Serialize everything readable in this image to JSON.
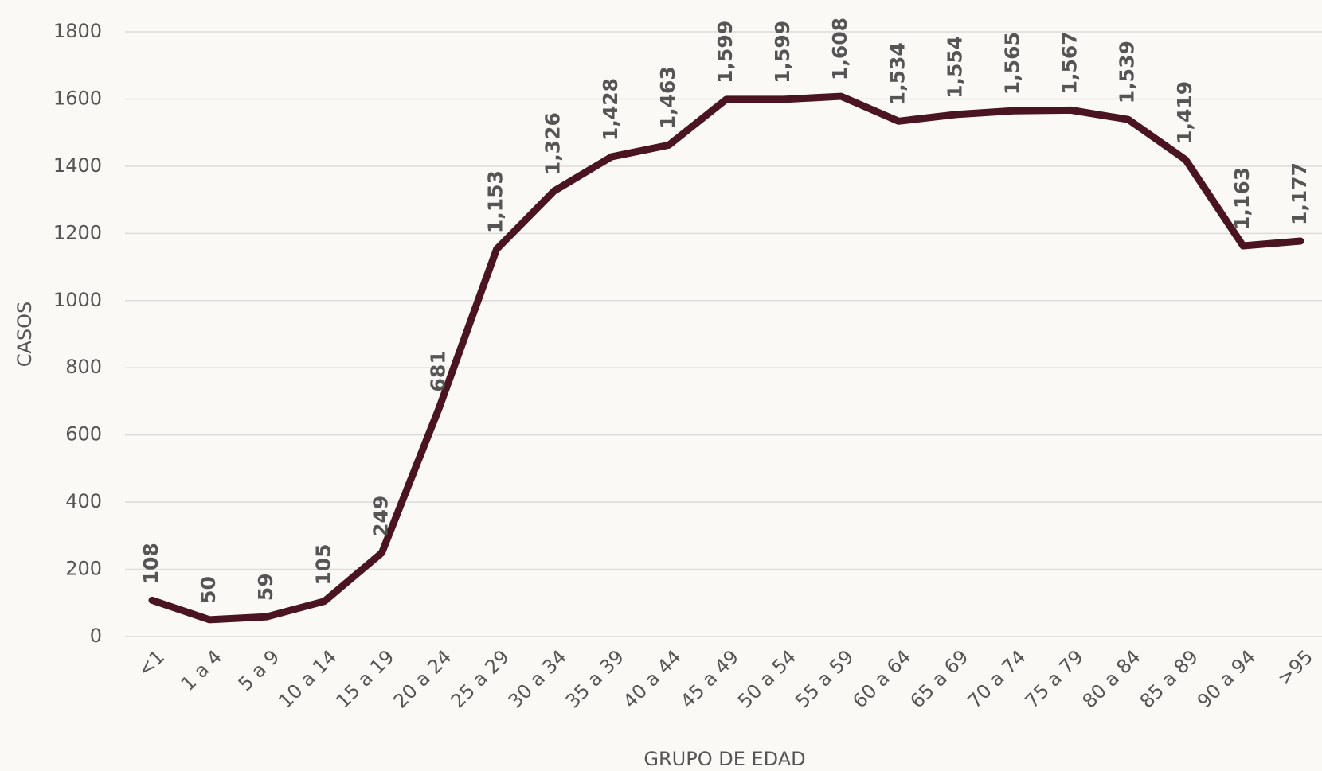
{
  "chart_data": {
    "type": "line",
    "y_label": "CASOS",
    "x_label": "GRUPO DE EDAD",
    "categories": [
      "<1",
      "1 a 4",
      "5 a 9",
      "10 a 14",
      "15 a 19",
      "20 a 24",
      "25 a 29",
      "30 a 34",
      "35 a 39",
      "40 a 44",
      "45 a 49",
      "50 a 54",
      "55 a 59",
      "60 a 64",
      "65 a 69",
      "70 a 74",
      "75 a 79",
      "80 a 84",
      "85 a 89",
      "90 a 94",
      ">95"
    ],
    "values": [
      108,
      50,
      59,
      105,
      249,
      681,
      1153,
      1326,
      1428,
      1463,
      1599,
      1599,
      1608,
      1534,
      1554,
      1565,
      1567,
      1539,
      1419,
      1163,
      1177
    ],
    "value_labels": [
      "108",
      "50",
      "59",
      "105",
      "249",
      "681",
      "1,153",
      "1,326",
      "1,428",
      "1,463",
      "1,599",
      "1,599",
      "1,608",
      "1,534",
      "1,554",
      "1,565",
      "1,567",
      "1,539",
      "1,419",
      "1,163",
      "1,177"
    ],
    "color": "#4a1520",
    "label_color": "#9b2247",
    "ylim": [
      0,
      1800
    ],
    "yticks": [
      0,
      200,
      400,
      600,
      800,
      1000,
      1200,
      1400,
      1600,
      1800
    ],
    "grid": true
  }
}
